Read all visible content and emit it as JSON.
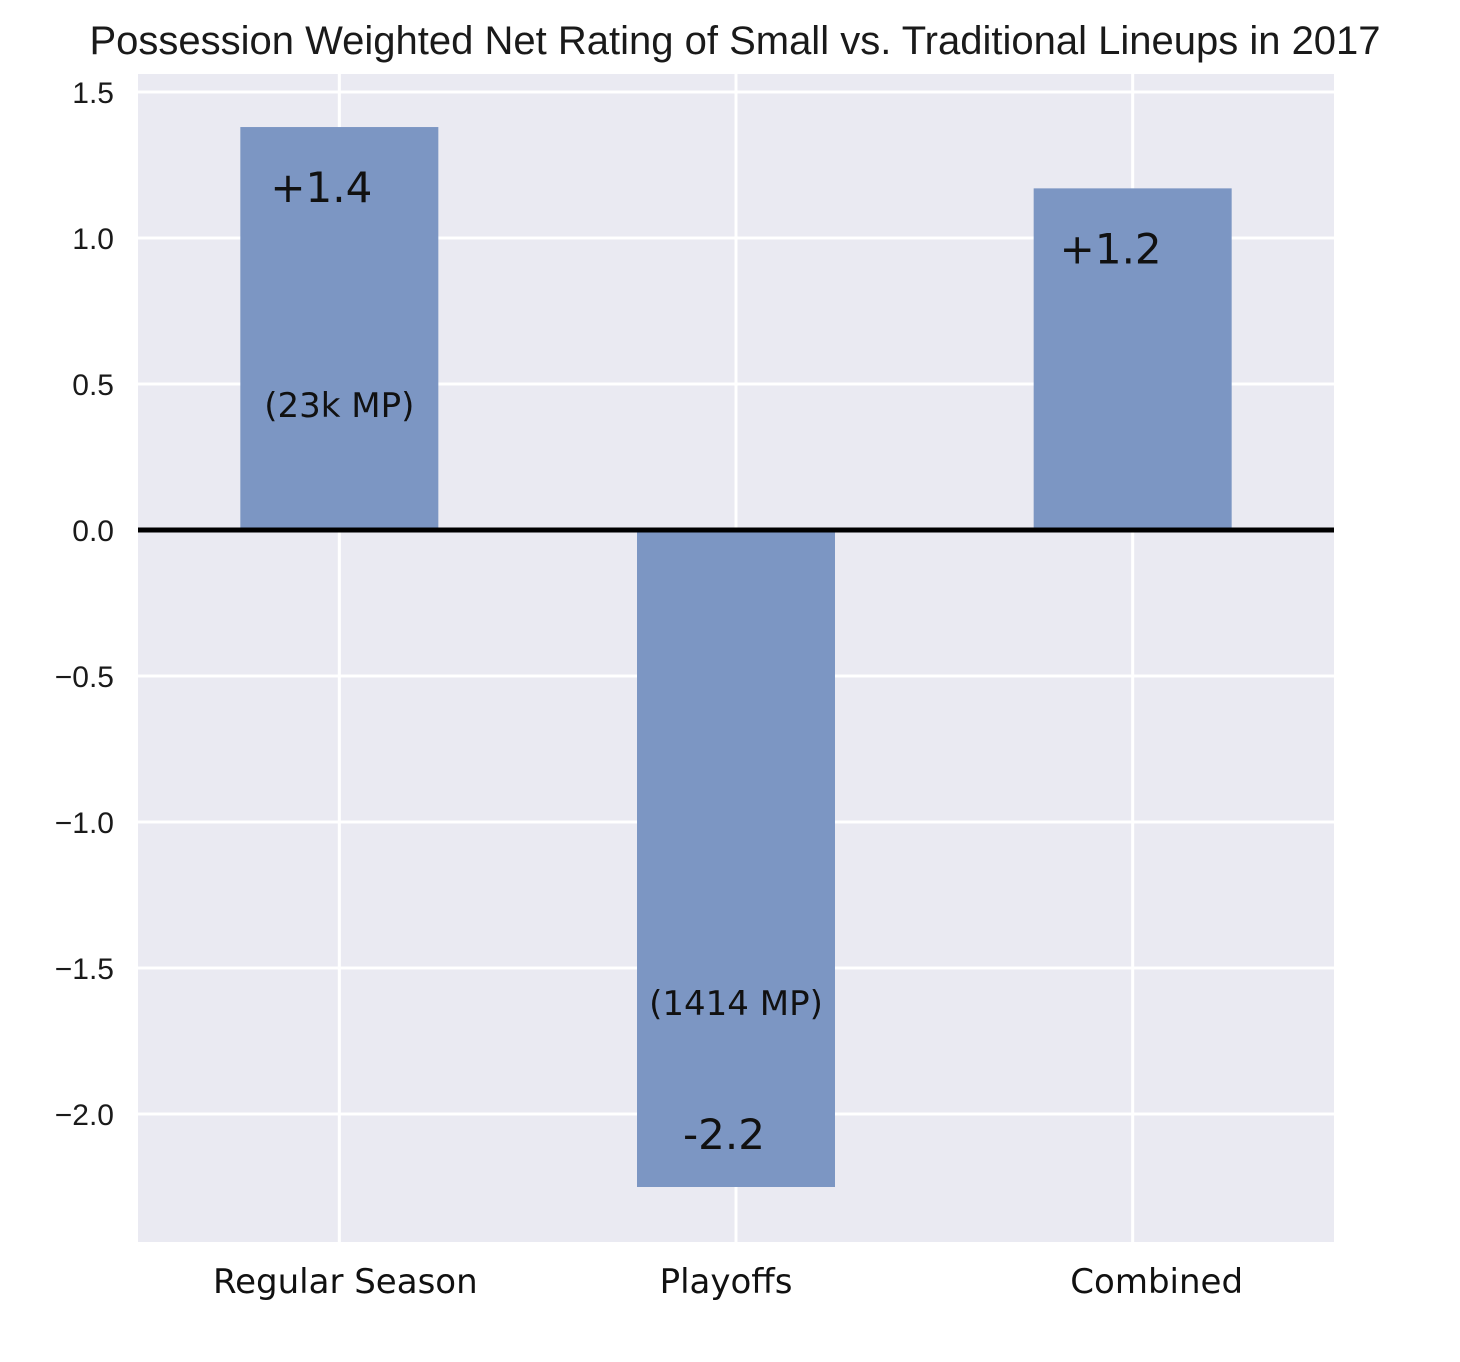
{
  "chart_data": {
    "type": "bar",
    "title": "Possession Weighted Net Rating of Small vs. Traditional Lineups in 2017",
    "xlabel": "",
    "ylabel": "",
    "categories": [
      "Regular Season",
      "Playoffs",
      "Combined"
    ],
    "values": [
      1.38,
      -2.25,
      1.17
    ],
    "value_labels": [
      "+1.4",
      "-2.2",
      "+1.2"
    ],
    "notes": [
      "(23k MP)",
      "(1414 MP)",
      ""
    ],
    "ylim": [
      -2.4,
      1.55
    ],
    "yticks": [
      1.5,
      1.0,
      0.5,
      0.0,
      -0.5,
      -1.0,
      -1.5,
      -2.0
    ],
    "ytick_labels": [
      "1.5",
      "1.0",
      "0.5",
      "0.0",
      "−0.5",
      "−1.0",
      "−1.5",
      "−2.0"
    ],
    "grid": true,
    "colors": {
      "bar": "#7893c1",
      "plot_background": "#eaeaf2",
      "grid": "#ffffff",
      "zero_line": "#000000"
    }
  }
}
